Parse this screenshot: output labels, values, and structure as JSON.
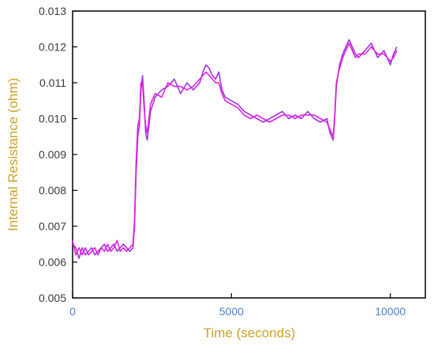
{
  "chart_data": {
    "type": "line",
    "title": "",
    "xlabel": "Time (seconds)",
    "ylabel": "Internal Resistance (ohm)",
    "xlim": [
      0,
      11100
    ],
    "ylim": [
      0.005,
      0.013
    ],
    "x_ticks": [
      0,
      5000,
      10000
    ],
    "x_tick_labels": [
      "0",
      "5000",
      "10000"
    ],
    "y_ticks": [
      0.005,
      0.006,
      0.007,
      0.008,
      0.009,
      0.01,
      0.011,
      0.012,
      0.013
    ],
    "y_tick_labels": [
      "0.005",
      "0.006",
      "0.007",
      "0.008",
      "0.009",
      "0.010",
      "0.011",
      "0.012",
      "0.013"
    ],
    "grid": false,
    "legend": "none",
    "colors": {
      "line_primary": "#a233e0",
      "line_secondary": "#e020e0",
      "axis": "#000000"
    },
    "series": [
      {
        "values": [
          [
            0,
            0.0065
          ],
          [
            100,
            0.0064
          ],
          [
            200,
            0.0061
          ],
          [
            300,
            0.0064
          ],
          [
            400,
            0.0062
          ],
          [
            500,
            0.0063
          ],
          [
            600,
            0.0064
          ],
          [
            700,
            0.0062
          ],
          [
            800,
            0.0063
          ],
          [
            900,
            0.0064
          ],
          [
            1000,
            0.0065
          ],
          [
            1100,
            0.0063
          ],
          [
            1200,
            0.0064
          ],
          [
            1300,
            0.0065
          ],
          [
            1400,
            0.0063
          ],
          [
            1500,
            0.0064
          ],
          [
            1600,
            0.0065
          ],
          [
            1700,
            0.0064
          ],
          [
            1800,
            0.0063
          ],
          [
            1900,
            0.0064
          ],
          [
            1950,
            0.007
          ],
          [
            2000,
            0.0085
          ],
          [
            2050,
            0.0095
          ],
          [
            2100,
            0.0098
          ],
          [
            2150,
            0.0108
          ],
          [
            2200,
            0.0112
          ],
          [
            2250,
            0.0105
          ],
          [
            2300,
            0.0096
          ],
          [
            2350,
            0.0094
          ],
          [
            2450,
            0.0102
          ],
          [
            2600,
            0.0106
          ],
          [
            2800,
            0.0108
          ],
          [
            3000,
            0.0109
          ],
          [
            3200,
            0.0111
          ],
          [
            3400,
            0.0107
          ],
          [
            3600,
            0.011
          ],
          [
            3800,
            0.0108
          ],
          [
            4000,
            0.011
          ],
          [
            4100,
            0.0113
          ],
          [
            4200,
            0.0115
          ],
          [
            4300,
            0.0114
          ],
          [
            4400,
            0.0112
          ],
          [
            4500,
            0.0111
          ],
          [
            4600,
            0.0113
          ],
          [
            4700,
            0.0108
          ],
          [
            4800,
            0.0106
          ],
          [
            5000,
            0.0105
          ],
          [
            5200,
            0.0104
          ],
          [
            5400,
            0.0102
          ],
          [
            5600,
            0.0101
          ],
          [
            5800,
            0.01
          ],
          [
            6000,
            0.0099
          ],
          [
            6200,
            0.01
          ],
          [
            6400,
            0.0101
          ],
          [
            6600,
            0.0102
          ],
          [
            6800,
            0.01
          ],
          [
            7000,
            0.0101
          ],
          [
            7200,
            0.01
          ],
          [
            7400,
            0.0102
          ],
          [
            7600,
            0.01
          ],
          [
            7800,
            0.0099
          ],
          [
            8000,
            0.01
          ],
          [
            8100,
            0.0096
          ],
          [
            8200,
            0.0094
          ],
          [
            8250,
            0.01
          ],
          [
            8300,
            0.0109
          ],
          [
            8400,
            0.0115
          ],
          [
            8500,
            0.0118
          ],
          [
            8600,
            0.012
          ],
          [
            8700,
            0.0122
          ],
          [
            8800,
            0.012
          ],
          [
            8900,
            0.0118
          ],
          [
            9000,
            0.0117
          ],
          [
            9200,
            0.0119
          ],
          [
            9400,
            0.0121
          ],
          [
            9600,
            0.0117
          ],
          [
            9800,
            0.0119
          ],
          [
            10000,
            0.0115
          ],
          [
            10100,
            0.0118
          ],
          [
            10200,
            0.012
          ]
        ]
      },
      {
        "values": [
          [
            0,
            0.0066
          ],
          [
            100,
            0.0062
          ],
          [
            200,
            0.0064
          ],
          [
            300,
            0.0062
          ],
          [
            400,
            0.0064
          ],
          [
            500,
            0.0062
          ],
          [
            600,
            0.0063
          ],
          [
            700,
            0.0064
          ],
          [
            800,
            0.0062
          ],
          [
            900,
            0.0064
          ],
          [
            1000,
            0.0063
          ],
          [
            1100,
            0.0065
          ],
          [
            1200,
            0.0063
          ],
          [
            1300,
            0.0064
          ],
          [
            1400,
            0.0066
          ],
          [
            1500,
            0.0063
          ],
          [
            1600,
            0.0064
          ],
          [
            1700,
            0.0063
          ],
          [
            1800,
            0.0064
          ],
          [
            1900,
            0.0065
          ],
          [
            1950,
            0.0072
          ],
          [
            2000,
            0.0088
          ],
          [
            2050,
            0.0098
          ],
          [
            2100,
            0.01
          ],
          [
            2150,
            0.011
          ],
          [
            2200,
            0.011
          ],
          [
            2250,
            0.0103
          ],
          [
            2300,
            0.0098
          ],
          [
            2350,
            0.0096
          ],
          [
            2450,
            0.0104
          ],
          [
            2600,
            0.0107
          ],
          [
            2800,
            0.0106
          ],
          [
            3000,
            0.011
          ],
          [
            3200,
            0.0109
          ],
          [
            3400,
            0.0109
          ],
          [
            3600,
            0.0108
          ],
          [
            3800,
            0.0109
          ],
          [
            4000,
            0.0111
          ],
          [
            4100,
            0.0112
          ],
          [
            4200,
            0.0113
          ],
          [
            4300,
            0.0112
          ],
          [
            4400,
            0.0111
          ],
          [
            4500,
            0.011
          ],
          [
            4600,
            0.011
          ],
          [
            4700,
            0.0107
          ],
          [
            4800,
            0.0105
          ],
          [
            5000,
            0.0104
          ],
          [
            5200,
            0.0103
          ],
          [
            5400,
            0.0101
          ],
          [
            5600,
            0.01
          ],
          [
            5800,
            0.0101
          ],
          [
            6000,
            0.01
          ],
          [
            6200,
            0.0099
          ],
          [
            6400,
            0.01
          ],
          [
            6600,
            0.0101
          ],
          [
            6800,
            0.0101
          ],
          [
            7000,
            0.01
          ],
          [
            7200,
            0.0101
          ],
          [
            7400,
            0.0101
          ],
          [
            7600,
            0.0101
          ],
          [
            7800,
            0.01
          ],
          [
            8000,
            0.0099
          ],
          [
            8100,
            0.0097
          ],
          [
            8200,
            0.0095
          ],
          [
            8250,
            0.0101
          ],
          [
            8300,
            0.011
          ],
          [
            8400,
            0.0114
          ],
          [
            8500,
            0.0117
          ],
          [
            8600,
            0.0119
          ],
          [
            8700,
            0.0121
          ],
          [
            8800,
            0.0119
          ],
          [
            8900,
            0.0117
          ],
          [
            9000,
            0.0118
          ],
          [
            9200,
            0.0118
          ],
          [
            9400,
            0.012
          ],
          [
            9600,
            0.0118
          ],
          [
            9800,
            0.0118
          ],
          [
            10000,
            0.0116
          ],
          [
            10100,
            0.0117
          ],
          [
            10200,
            0.0119
          ]
        ]
      }
    ]
  }
}
